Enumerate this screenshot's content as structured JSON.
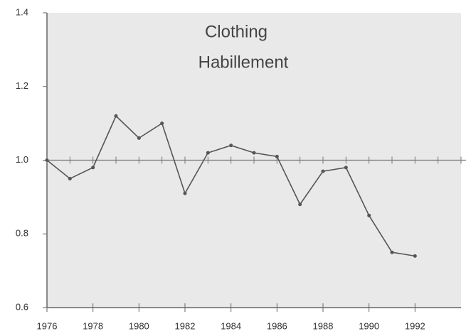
{
  "chart_data": {
    "type": "line",
    "title": "Clothing",
    "subtitle": "Habillement",
    "x": [
      1976,
      1977,
      1978,
      1979,
      1980,
      1981,
      1982,
      1983,
      1984,
      1985,
      1986,
      1987,
      1988,
      1989,
      1990,
      1991,
      1992
    ],
    "series": [
      {
        "name": "Clothing",
        "color": "#555555",
        "values": [
          1.0,
          0.95,
          0.98,
          1.12,
          1.06,
          1.1,
          0.91,
          1.02,
          1.04,
          1.02,
          1.01,
          0.88,
          0.97,
          0.98,
          0.85,
          0.75,
          0.74
        ]
      }
    ],
    "xlim": [
      1976,
      1994
    ],
    "xticks": [
      1976,
      1978,
      1980,
      1982,
      1984,
      1986,
      1988,
      1990,
      1992
    ],
    "ylim": [
      0.6,
      1.4
    ],
    "yticks": [
      0.6,
      0.8,
      {
        "value": 1.0,
        "label": "1.0"
      },
      1.2,
      1.4
    ],
    "reference_line": 1.0,
    "grid": false
  }
}
